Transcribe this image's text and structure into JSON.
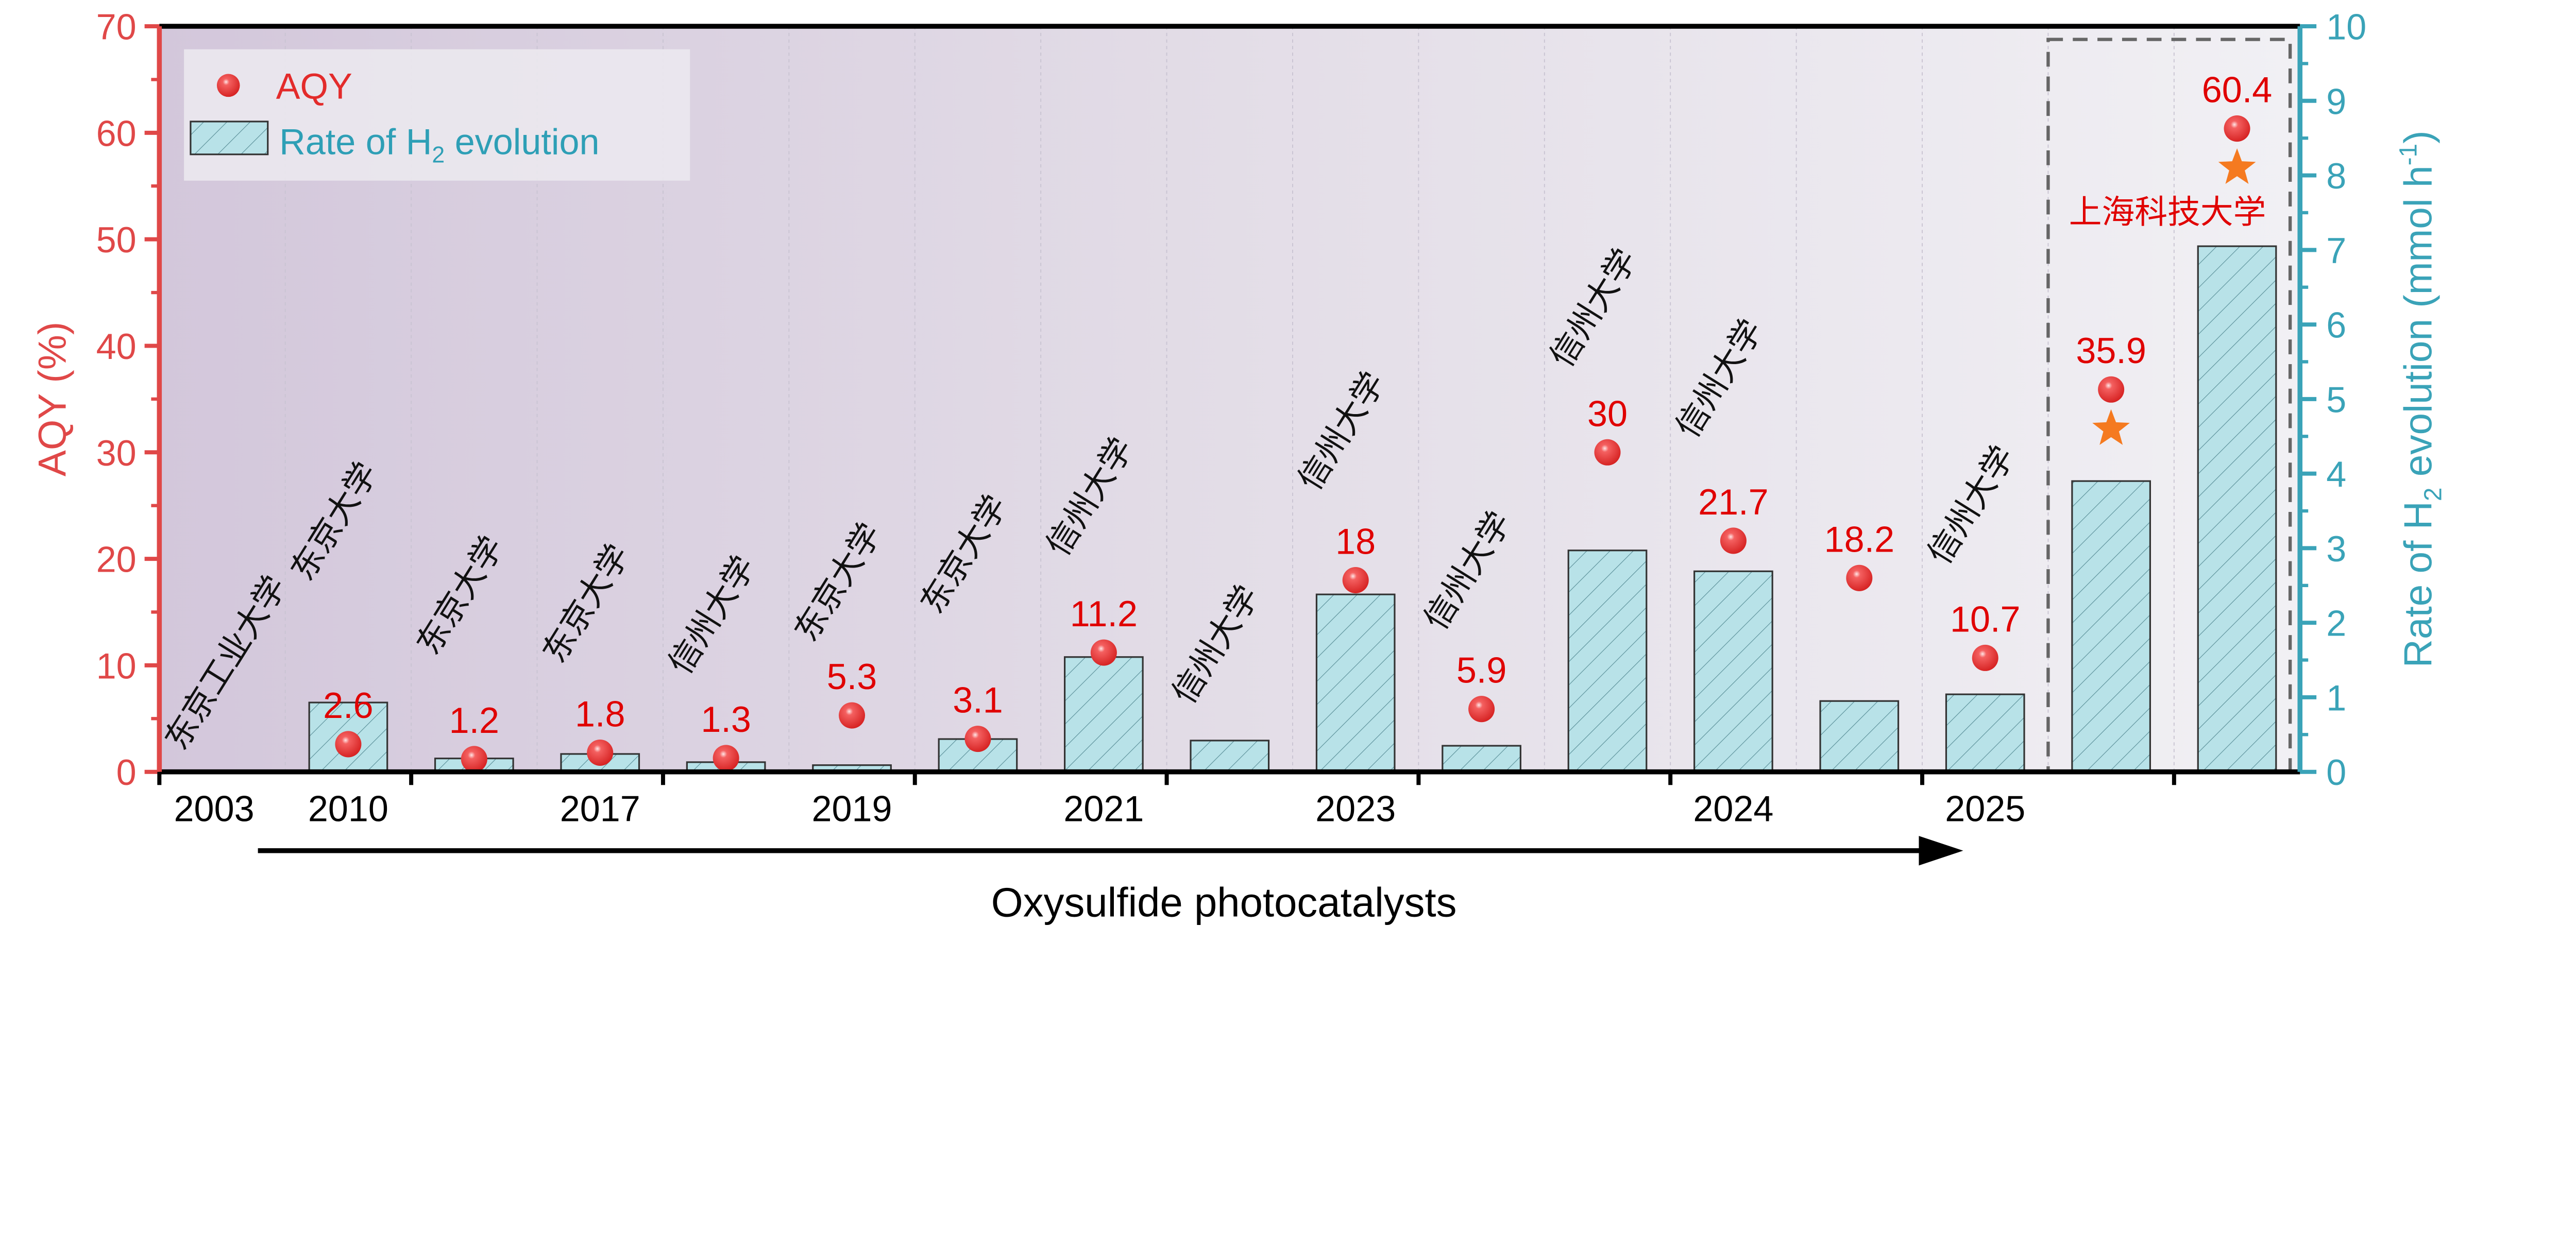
{
  "chart_data": {
    "type": "bar+scatter",
    "xlabel": "Oxysulfide photocatalysts",
    "ylabel_left": "AQY (%)",
    "ylabel_right": "Rate of H2 evolution (mmol h-1)",
    "ylim_left": [
      0,
      70
    ],
    "ylim_right": [
      0,
      10
    ],
    "left_ticks": [
      "0",
      "10",
      "20",
      "30",
      "40",
      "50",
      "60",
      "70"
    ],
    "right_ticks": [
      "0",
      "1",
      "2",
      "3",
      "4",
      "5",
      "6",
      "7",
      "8",
      "9",
      "10"
    ],
    "categories": [
      "2003",
      "2010",
      "",
      "2017",
      "",
      "2019",
      "",
      "2021",
      "",
      "2023",
      "",
      "",
      "2024",
      "",
      "2025",
      "",
      ""
    ],
    "institutions": [
      "东京工业大学",
      "东京大学",
      "东京大学",
      "东京大学",
      "信州大学",
      "东京大学",
      "东京大学",
      "信州大学",
      "信州大学",
      "信州大学",
      "信州大学",
      "信州大学",
      "信州大学",
      "",
      "信州大学",
      "",
      ""
    ],
    "highlight_institution": "上海科技大学",
    "series": [
      {
        "name": "Rate of H2 evolution",
        "axis": "right",
        "type": "bar",
        "values": [
          0,
          0.93,
          0.18,
          0.24,
          0.13,
          0.09,
          0.44,
          1.54,
          0.42,
          2.38,
          0.35,
          2.97,
          2.69,
          0.95,
          1.04,
          3.9,
          7.05
        ]
      },
      {
        "name": "AQY",
        "axis": "left",
        "type": "scatter",
        "values": [
          null,
          2.6,
          1.2,
          1.8,
          1.3,
          5.3,
          3.1,
          11.2,
          null,
          18,
          5.9,
          30,
          21.7,
          18.2,
          10.7,
          35.9,
          60.4
        ],
        "labels": [
          "",
          "2.6",
          "1.2",
          "1.8",
          "1.3",
          "5.3",
          "3.1",
          "11.2",
          "",
          "18",
          "5.9",
          "30",
          "21.7",
          "18.2",
          "10.7",
          "35.9",
          "60.4"
        ]
      }
    ],
    "star_markers": [
      16,
      17
    ],
    "legend": {
      "position": "top-left",
      "entries": [
        "AQY",
        "Rate of H2 evolution"
      ]
    },
    "colors": {
      "aqy": "#e32b2b",
      "bar_fill": "#b8e2e8",
      "right_axis": "#3aa3b8",
      "left_axis": "#e04848",
      "star": "#f57a20"
    }
  }
}
